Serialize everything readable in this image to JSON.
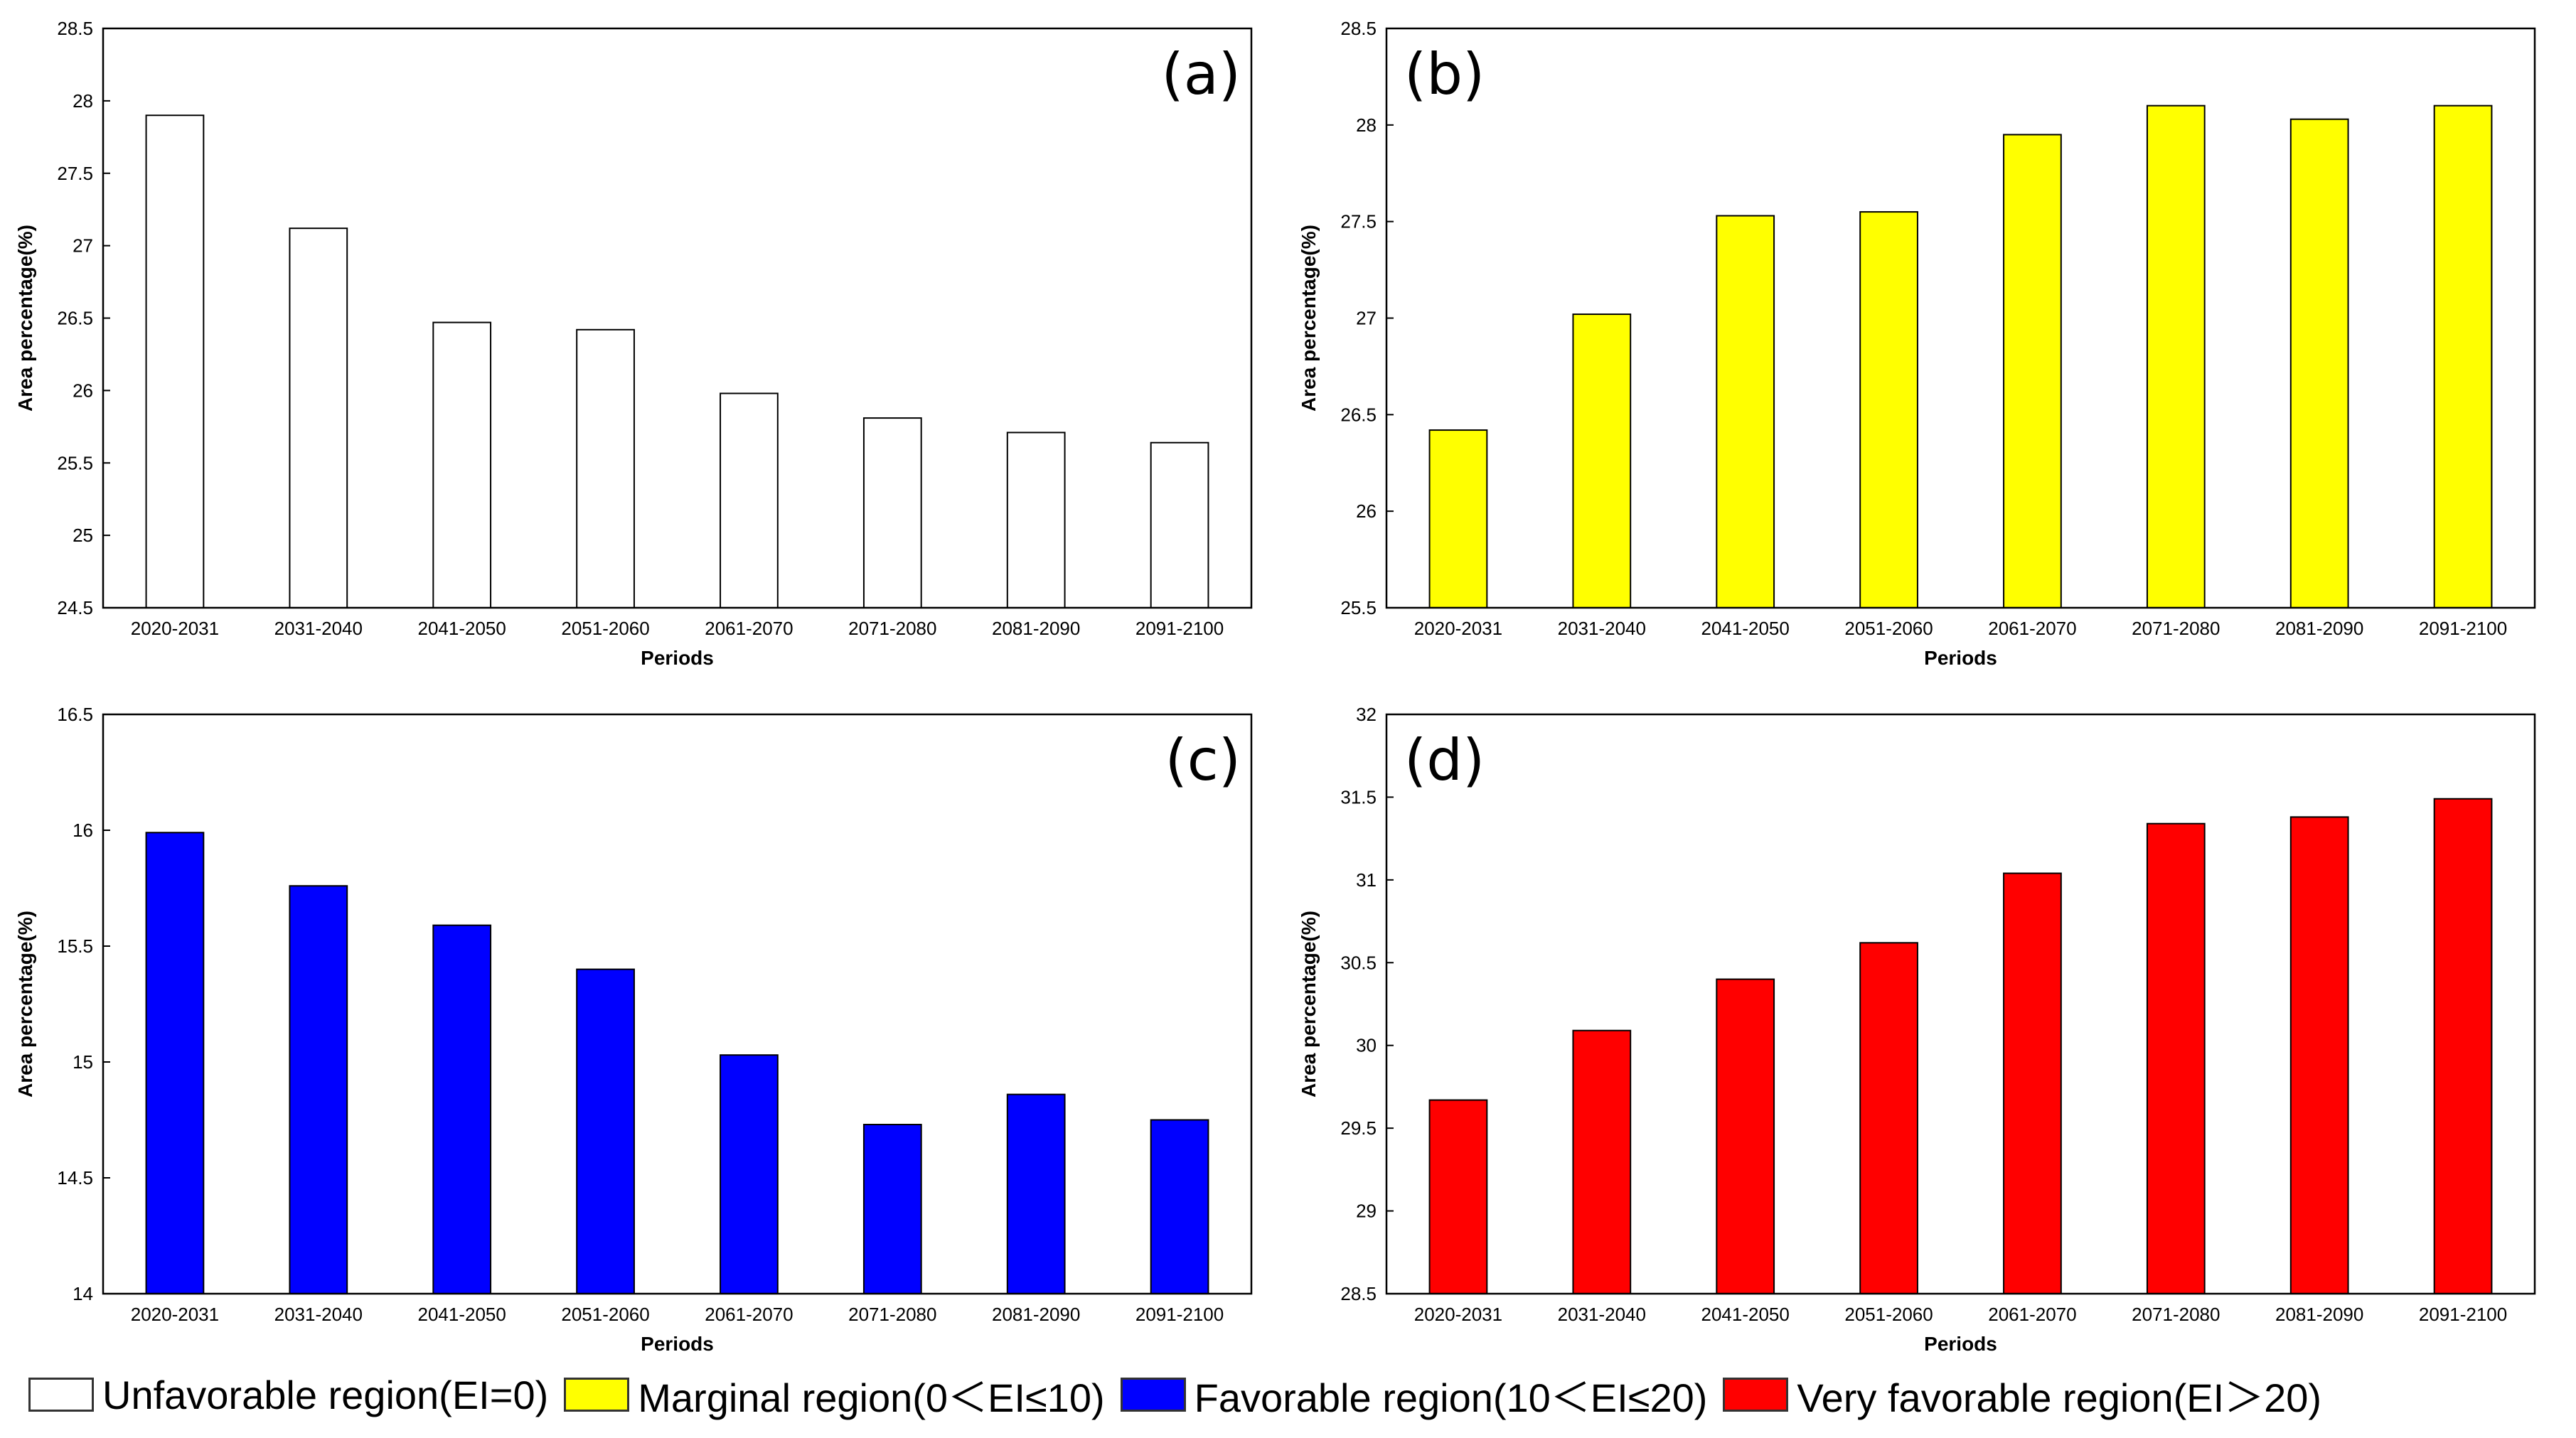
{
  "chart_data": [
    {
      "type": "bar",
      "panel": "(a)",
      "title": "",
      "xlabel": "Periods",
      "ylabel": "Area percentage(%)",
      "categories": [
        "2020-2031",
        "2031-2040",
        "2041-2050",
        "2051-2060",
        "2061-2070",
        "2071-2080",
        "2081-2090",
        "2091-2100"
      ],
      "values": [
        27.9,
        27.12,
        26.47,
        26.42,
        25.98,
        25.81,
        25.71,
        25.64
      ],
      "ylim": [
        24.5,
        28.5
      ],
      "yticks": [
        "24.5",
        "25",
        "25.5",
        "26",
        "26.5",
        "27",
        "27.5",
        "28",
        "28.5"
      ],
      "color": "#ffffff",
      "grid": false
    },
    {
      "type": "bar",
      "panel": "(b)",
      "title": "",
      "xlabel": "Periods",
      "ylabel": "Area percentage(%)",
      "categories": [
        "2020-2031",
        "2031-2040",
        "2041-2050",
        "2051-2060",
        "2061-2070",
        "2071-2080",
        "2081-2090",
        "2091-2100"
      ],
      "values": [
        26.42,
        27.02,
        27.53,
        27.55,
        27.95,
        28.1,
        28.03,
        28.1
      ],
      "ylim": [
        25.5,
        28.5
      ],
      "yticks": [
        "25.5",
        "26",
        "26.5",
        "27",
        "27.5",
        "28",
        "28.5"
      ],
      "color": "#ffff00",
      "grid": false
    },
    {
      "type": "bar",
      "panel": "(c)",
      "title": "",
      "xlabel": "Periods",
      "ylabel": "Area percentage(%)",
      "categories": [
        "2020-2031",
        "2031-2040",
        "2041-2050",
        "2051-2060",
        "2061-2070",
        "2071-2080",
        "2081-2090",
        "2091-2100"
      ],
      "values": [
        15.99,
        15.76,
        15.59,
        15.4,
        15.03,
        14.73,
        14.86,
        14.75
      ],
      "ylim": [
        14,
        16.5
      ],
      "yticks": [
        "14",
        "14.5",
        "15",
        "15.5",
        "16",
        "16.5"
      ],
      "color": "#0000ff",
      "grid": false
    },
    {
      "type": "bar",
      "panel": "(d)",
      "title": "",
      "xlabel": "Periods",
      "ylabel": "Area percentage(%)",
      "categories": [
        "2020-2031",
        "2031-2040",
        "2041-2050",
        "2051-2060",
        "2061-2070",
        "2071-2080",
        "2081-2090",
        "2091-2100"
      ],
      "values": [
        29.67,
        30.09,
        30.4,
        30.62,
        31.04,
        31.34,
        31.38,
        31.49
      ],
      "ylim": [
        28.5,
        32
      ],
      "yticks": [
        "28.5",
        "29",
        "29.5",
        "30",
        "30.5",
        "31",
        "31.5",
        "32"
      ],
      "color": "#ff0000",
      "grid": false
    }
  ],
  "legend": {
    "position": "bottom",
    "items": [
      {
        "label": "Unfavorable region(EI=0)",
        "color": "#ffffff"
      },
      {
        "label": "Marginal region(0＜EI≤10)",
        "color": "#ffff00"
      },
      {
        "label": "Favorable region(10＜EI≤20)",
        "color": "#0000ff"
      },
      {
        "label": "Very favorable region(EI＞20)",
        "color": "#ff0000"
      }
    ]
  }
}
